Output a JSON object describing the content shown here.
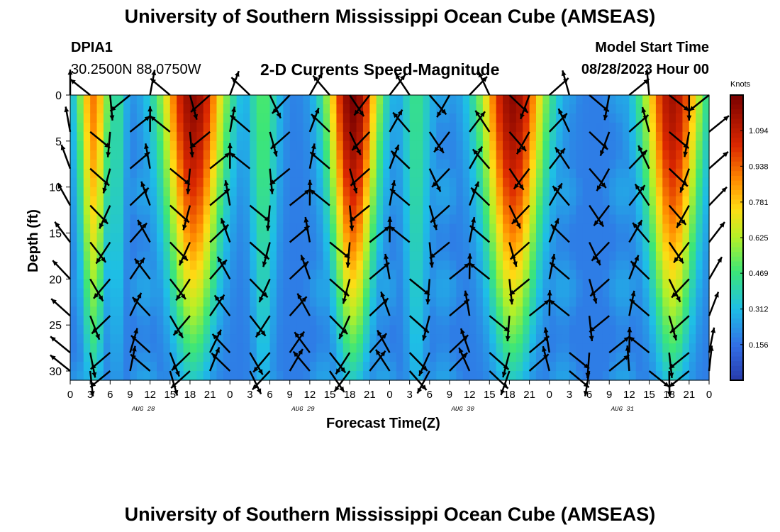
{
  "header": {
    "title": "University of Southern Mississippi Ocean Cube (AMSEAS)",
    "station": "DPIA1",
    "coords": "30.2500N  88.0750W",
    "subtitle": "2-D Currents Speed-Magnitude",
    "model_start_label": "Model Start Time",
    "model_start_value": "08/28/2023 Hour 00",
    "footer_title": "University of Southern Mississippi Ocean Cube (AMSEAS)"
  },
  "chart_data": {
    "type": "heatmap",
    "title": "2-D Currents Speed-Magnitude",
    "xlabel": "Forecast Time(Z)",
    "ylabel": "Depth (ft)",
    "xlim": [
      0,
      96
    ],
    "ylim": [
      0,
      31
    ],
    "x_ticks": [
      0,
      3,
      6,
      9,
      12,
      15,
      18,
      21,
      24,
      27,
      30,
      33,
      36,
      39,
      42,
      45,
      48,
      51,
      54,
      57,
      60,
      63,
      66,
      69,
      72,
      75,
      78,
      81,
      84,
      87,
      90,
      93,
      96
    ],
    "x_tick_labels": [
      "0",
      "3",
      "6",
      "9",
      "12",
      "15",
      "18",
      "21",
      "0",
      "3",
      "6",
      "9",
      "12",
      "15",
      "18",
      "21",
      "0",
      "3",
      "6",
      "9",
      "12",
      "15",
      "18",
      "21",
      "0",
      "3",
      "6",
      "9",
      "12",
      "15",
      "18",
      "21",
      "0"
    ],
    "day_labels": [
      {
        "text": "AUG 28",
        "hour": 11
      },
      {
        "text": "AUG 29",
        "hour": 35
      },
      {
        "text": "AUG 30",
        "hour": 59
      },
      {
        "text": "AUG 31",
        "hour": 83
      }
    ],
    "y_ticks": [
      0,
      5,
      10,
      15,
      20,
      25,
      30
    ],
    "colorbar": {
      "label": "Knots",
      "min": 0.0,
      "max": 1.25,
      "ticks": [
        "1.094",
        "0.938",
        "0.781",
        "0.625",
        "0.469",
        "0.312",
        "0.156"
      ],
      "tick_values": [
        1.094,
        0.938,
        0.781,
        0.625,
        0.469,
        0.312,
        0.156
      ]
    },
    "speed_peaks": [
      {
        "hour": 3.5,
        "surface_speed": 0.9,
        "bottom_speed": 0.35,
        "width_hours": 2.5
      },
      {
        "hour": 18.5,
        "surface_speed": 1.2,
        "bottom_speed": 0.35,
        "width_hours": 5
      },
      {
        "hour": 7,
        "surface_speed": 0.45,
        "bottom_speed": 0.25,
        "width_hours": 1.5
      },
      {
        "hour": 29,
        "surface_speed": 0.5,
        "bottom_speed": 0.3,
        "width_hours": 2.5
      },
      {
        "hour": 42.5,
        "surface_speed": 1.25,
        "bottom_speed": 0.35,
        "width_hours": 4
      },
      {
        "hour": 52,
        "surface_speed": 0.45,
        "bottom_speed": 0.3,
        "width_hours": 2.5
      },
      {
        "hour": 66.5,
        "surface_speed": 1.2,
        "bottom_speed": 0.35,
        "width_hours": 5
      },
      {
        "hour": 90.5,
        "surface_speed": 1.15,
        "bottom_speed": 0.35,
        "width_hours": 4.5
      }
    ],
    "arrow_times": [
      0,
      3,
      6,
      9,
      12,
      15,
      18,
      21,
      24,
      27,
      30,
      33,
      36,
      39,
      42,
      45,
      48,
      51,
      54,
      57,
      60,
      63,
      66,
      69,
      72,
      75,
      78,
      81,
      84,
      87,
      90,
      93,
      96
    ],
    "arrow_depths": [
      0,
      4,
      8,
      12,
      16,
      20,
      24,
      28,
      30
    ]
  },
  "colors": {
    "background": "#ffffff",
    "arrow": "#000000"
  }
}
